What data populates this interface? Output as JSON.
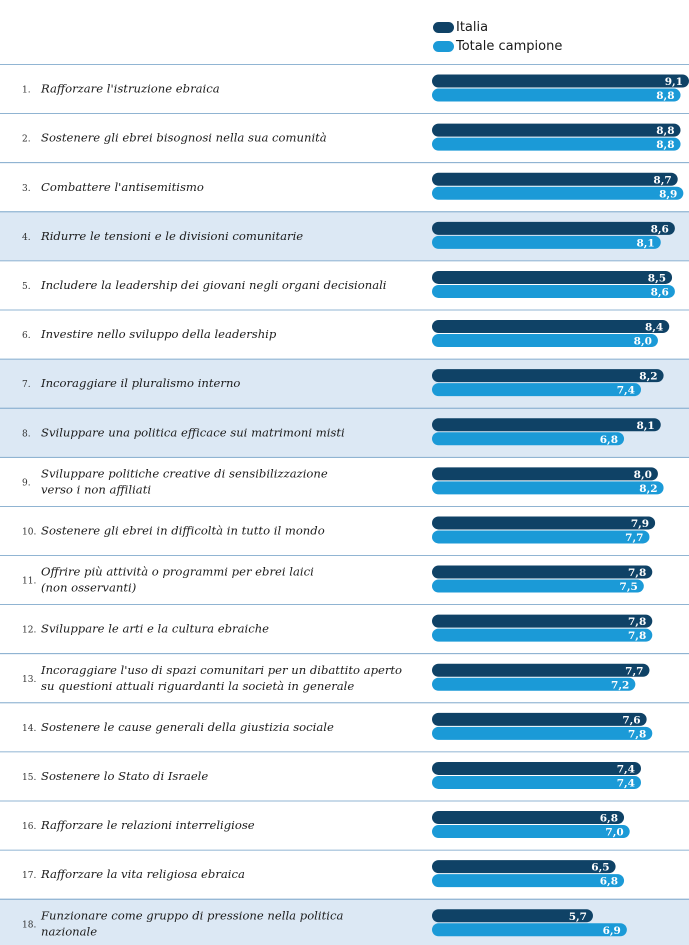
{
  "legend": {
    "series_1": "Italia",
    "series_2": "Totale campione"
  },
  "colors": {
    "italia": "#0f4266",
    "totale": "#1b9ad7",
    "highlight_band": "#dce8f4",
    "divider": "#6c9cc4"
  },
  "chart_data": {
    "type": "bar",
    "orientation": "horizontal",
    "xlim": [
      0,
      9.1
    ],
    "categories": [
      {
        "num": "1.",
        "lines": [
          "Rafforzare l'istruzione ebraica"
        ],
        "highlighted": false
      },
      {
        "num": "2.",
        "lines": [
          "Sostenere gli ebrei bisognosi nella sua comunità"
        ],
        "highlighted": false
      },
      {
        "num": "3.",
        "lines": [
          "Combattere l'antisemitismo"
        ],
        "highlighted": false
      },
      {
        "num": "4.",
        "lines": [
          "Ridurre le tensioni e le divisioni comunitarie"
        ],
        "highlighted": true
      },
      {
        "num": "5.",
        "lines": [
          "Includere la leadership dei giovani negli organi decisionali"
        ],
        "highlighted": false
      },
      {
        "num": "6.",
        "lines": [
          "Investire nello sviluppo della leadership"
        ],
        "highlighted": false
      },
      {
        "num": "7.",
        "lines": [
          "Incoraggiare il pluralismo interno"
        ],
        "highlighted": true
      },
      {
        "num": "8.",
        "lines": [
          "Sviluppare una politica efficace sui matrimoni misti"
        ],
        "highlighted": true
      },
      {
        "num": "9.",
        "lines": [
          "Sviluppare politiche creative di sensibilizzazione",
          "verso i non affiliati"
        ],
        "highlighted": false
      },
      {
        "num": "10.",
        "lines": [
          "Sostenere gli ebrei in difficoltà in tutto il mondo"
        ],
        "highlighted": false
      },
      {
        "num": "11.",
        "lines": [
          "Offrire più attività o programmi per ebrei laici",
          "(non osservanti)"
        ],
        "highlighted": false
      },
      {
        "num": "12.",
        "lines": [
          "Sviluppare le arti e la cultura ebraiche"
        ],
        "highlighted": false
      },
      {
        "num": "13.",
        "lines": [
          "Incoraggiare l'uso di spazi comunitari per un dibattito aperto",
          "su questioni attuali riguardanti la società in generale"
        ],
        "highlighted": false
      },
      {
        "num": "14.",
        "lines": [
          "Sostenere le cause generali della giustizia sociale"
        ],
        "highlighted": false
      },
      {
        "num": "15.",
        "lines": [
          "Sostenere lo Stato di Israele"
        ],
        "highlighted": false
      },
      {
        "num": "16.",
        "lines": [
          "Rafforzare le relazioni interreligiose"
        ],
        "highlighted": false
      },
      {
        "num": "17.",
        "lines": [
          "Rafforzare la vita religiosa ebraica"
        ],
        "highlighted": false
      },
      {
        "num": "18.",
        "lines": [
          "Funzionare come gruppo di pressione nella politica",
          "nazionale"
        ],
        "highlighted": true
      }
    ],
    "series": [
      {
        "name": "Italia",
        "values": [
          9.1,
          8.8,
          8.7,
          8.6,
          8.5,
          8.4,
          8.2,
          8.1,
          8.0,
          7.9,
          7.8,
          7.8,
          7.7,
          7.6,
          7.4,
          6.8,
          6.5,
          5.7
        ],
        "labels": [
          "9,1",
          "8,8",
          "8,7",
          "8,6",
          "8,5",
          "8,4",
          "8,2",
          "8,1",
          "8,0",
          "7,9",
          "7,8",
          "7,8",
          "7,7",
          "7,6",
          "7,4",
          "6,8",
          "6,5",
          "5,7"
        ]
      },
      {
        "name": "Totale campione",
        "values": [
          8.8,
          8.8,
          8.9,
          8.1,
          8.6,
          8.0,
          7.4,
          6.8,
          8.2,
          7.7,
          7.5,
          7.8,
          7.2,
          7.8,
          7.4,
          7.0,
          6.8,
          6.9
        ],
        "labels": [
          "8,8",
          "8,8",
          "8,9",
          "8,1",
          "8,6",
          "8,0",
          "7,4",
          "6,8",
          "8,2",
          "7,7",
          "7,5",
          "7,8",
          "7,2",
          "7,8",
          "7,4",
          "7,0",
          "6,8",
          "6,9"
        ]
      }
    ]
  }
}
